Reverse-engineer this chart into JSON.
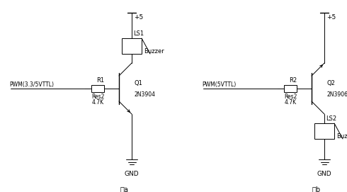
{
  "bg_color": "#ffffff",
  "fig_width": 4.9,
  "fig_height": 2.71,
  "dpi": 100,
  "ca_pwm": "PWM(3.3/5VTTL)",
  "ca_r_label": "R1",
  "ca_r_sub1": "Res2",
  "ca_r_sub2": "4.7K",
  "ca_q_label": "Q1",
  "ca_q_model": "2N3904",
  "ca_buz_label": "LS1",
  "ca_buz_sub": "Buzzer",
  "ca_vcc": "+5",
  "ca_gnd": "GND",
  "ca_fig": "图a",
  "cb_pwm": "PWM(5VTTL)",
  "cb_r_label": "R2",
  "cb_r_sub1": "Res2",
  "cb_r_sub2": "4.7K",
  "cb_q_label": "Q2",
  "cb_q_model": "2N3906",
  "cb_buz_label": "LS2",
  "cb_buz_sub": "Buzzer",
  "cb_vcc": "+5",
  "cb_gnd": "GND",
  "cb_fig": "图b"
}
